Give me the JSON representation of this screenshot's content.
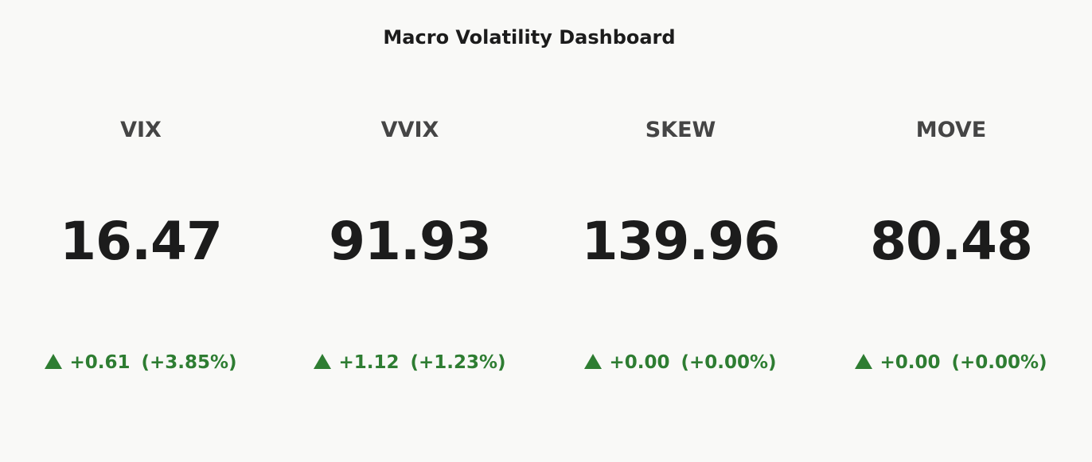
{
  "title": "Macro Volatility Dashboard",
  "colors": {
    "background": "#f9f9f7",
    "value_text": "#1c1c1c",
    "label_text": "#454545",
    "positive": "#2e7d32"
  },
  "cards": [
    {
      "label": "VIX",
      "value": "16.47",
      "direction_icon": "triangle-up-icon",
      "change": "+0.61",
      "change_pct": "(+3.85%)"
    },
    {
      "label": "VVIX",
      "value": "91.93",
      "direction_icon": "triangle-up-icon",
      "change": "+1.12",
      "change_pct": "(+1.23%)"
    },
    {
      "label": "SKEW",
      "value": "139.96",
      "direction_icon": "triangle-up-icon",
      "change": "+0.00",
      "change_pct": "(+0.00%)"
    },
    {
      "label": "MOVE",
      "value": "80.48",
      "direction_icon": "triangle-up-icon",
      "change": "+0.00",
      "change_pct": "(+0.00%)"
    }
  ]
}
